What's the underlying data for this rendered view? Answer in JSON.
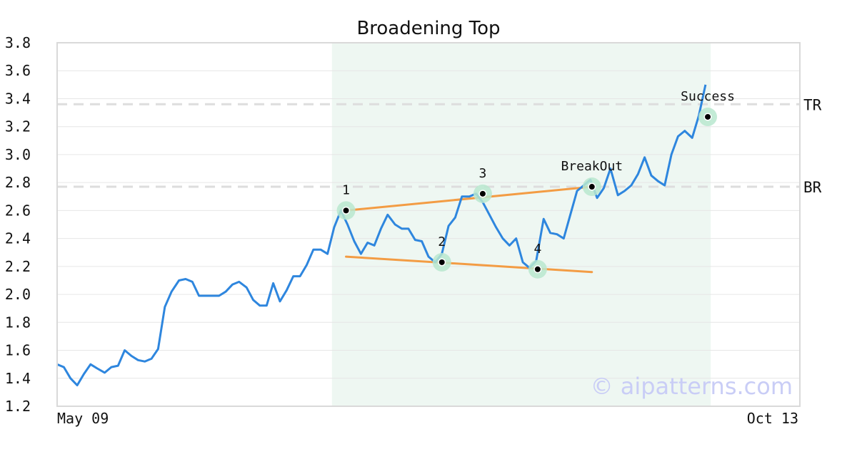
{
  "chart_data": {
    "type": "line",
    "title": "Broadening Top",
    "xlabel": "",
    "ylabel": "",
    "x_start_label": "May 09",
    "x_end_label": "Oct 13",
    "ylim": [
      1.2,
      3.8
    ],
    "xlim": [
      0,
      100
    ],
    "yticks": [
      "1.2",
      "1.4",
      "1.6",
      "1.8",
      "2.0",
      "2.2",
      "2.4",
      "2.6",
      "2.8",
      "3.0",
      "3.2",
      "3.4",
      "3.6",
      "3.8"
    ],
    "grid": true,
    "series": [
      {
        "color": "#2e86de",
        "values": [
          [
            0,
            1.5
          ],
          [
            0.9,
            1.48
          ],
          [
            1.8,
            1.4
          ],
          [
            2.7,
            1.35
          ],
          [
            3.6,
            1.43
          ],
          [
            4.5,
            1.5
          ],
          [
            5.4,
            1.47
          ],
          [
            6.4,
            1.44
          ],
          [
            7.3,
            1.48
          ],
          [
            8.2,
            1.49
          ],
          [
            9.1,
            1.6
          ],
          [
            10.0,
            1.56
          ],
          [
            10.9,
            1.53
          ],
          [
            11.8,
            1.52
          ],
          [
            12.7,
            1.54
          ],
          [
            13.6,
            1.61
          ],
          [
            14.5,
            1.91
          ],
          [
            15.4,
            2.02
          ],
          [
            16.4,
            2.1
          ],
          [
            17.3,
            2.11
          ],
          [
            18.2,
            2.09
          ],
          [
            19.1,
            1.99
          ],
          [
            20.0,
            1.99
          ],
          [
            20.9,
            1.99
          ],
          [
            21.8,
            1.99
          ],
          [
            22.7,
            2.02
          ],
          [
            23.6,
            2.07
          ],
          [
            24.5,
            2.09
          ],
          [
            25.5,
            2.05
          ],
          [
            26.4,
            1.96
          ],
          [
            27.3,
            1.92
          ],
          [
            28.2,
            1.92
          ],
          [
            29.1,
            2.08
          ],
          [
            30.0,
            1.95
          ],
          [
            30.9,
            2.03
          ],
          [
            31.8,
            2.13
          ],
          [
            32.7,
            2.13
          ],
          [
            33.6,
            2.21
          ],
          [
            34.5,
            2.32
          ],
          [
            35.5,
            2.32
          ],
          [
            36.4,
            2.29
          ],
          [
            37.3,
            2.48
          ],
          [
            38.2,
            2.6
          ],
          [
            39.1,
            2.5
          ],
          [
            40.0,
            2.38
          ],
          [
            40.9,
            2.29
          ],
          [
            41.8,
            2.37
          ],
          [
            42.7,
            2.35
          ],
          [
            43.6,
            2.47
          ],
          [
            44.5,
            2.57
          ],
          [
            45.5,
            2.5
          ],
          [
            46.4,
            2.47
          ],
          [
            47.3,
            2.47
          ],
          [
            48.2,
            2.39
          ],
          [
            49.1,
            2.38
          ],
          [
            50.0,
            2.27
          ],
          [
            50.9,
            2.23
          ],
          [
            51.8,
            2.29
          ],
          [
            52.7,
            2.49
          ],
          [
            53.6,
            2.55
          ],
          [
            54.5,
            2.7
          ],
          [
            55.5,
            2.7
          ],
          [
            56.4,
            2.72
          ],
          [
            57.3,
            2.66
          ],
          [
            58.2,
            2.57
          ],
          [
            59.1,
            2.48
          ],
          [
            60.0,
            2.4
          ],
          [
            60.9,
            2.35
          ],
          [
            61.8,
            2.4
          ],
          [
            62.7,
            2.23
          ],
          [
            63.6,
            2.19
          ],
          [
            64.5,
            2.24
          ],
          [
            65.5,
            2.54
          ],
          [
            66.4,
            2.44
          ],
          [
            67.3,
            2.43
          ],
          [
            68.2,
            2.4
          ],
          [
            69.1,
            2.57
          ],
          [
            70.0,
            2.74
          ],
          [
            70.9,
            2.78
          ],
          [
            71.8,
            2.82
          ],
          [
            72.7,
            2.69
          ],
          [
            73.6,
            2.76
          ],
          [
            74.5,
            2.9
          ],
          [
            75.5,
            2.71
          ],
          [
            76.4,
            2.74
          ],
          [
            77.3,
            2.78
          ],
          [
            78.2,
            2.86
          ],
          [
            79.1,
            2.98
          ],
          [
            80.0,
            2.85
          ],
          [
            80.9,
            2.81
          ],
          [
            81.8,
            2.78
          ],
          [
            82.7,
            3.0
          ],
          [
            83.6,
            3.13
          ],
          [
            84.5,
            3.17
          ],
          [
            85.5,
            3.12
          ],
          [
            86.4,
            3.28
          ],
          [
            87.3,
            3.5
          ]
        ]
      }
    ],
    "trendlines": [
      {
        "color": "#f39c44",
        "from": [
          38.9,
          2.6
        ],
        "to": [
          72.0,
          2.77
        ]
      },
      {
        "color": "#f39c44",
        "from": [
          38.9,
          2.27
        ],
        "to": [
          72.0,
          2.16
        ]
      }
    ],
    "reference_lines": [
      {
        "label": "TR",
        "y": 3.36,
        "color": "#dddddd"
      },
      {
        "label": "BR",
        "y": 2.77,
        "color": "#dddddd"
      }
    ],
    "pattern_region": {
      "x_from": 37.0,
      "x_to": 88.0,
      "color": "#eef7f2"
    },
    "annotations": [
      {
        "label": "1",
        "x": 38.9,
        "y": 2.6
      },
      {
        "label": "2",
        "x": 51.8,
        "y": 2.23
      },
      {
        "label": "3",
        "x": 57.3,
        "y": 2.72
      },
      {
        "label": "4",
        "x": 64.7,
        "y": 2.18
      },
      {
        "label": "BreakOut",
        "x": 72.0,
        "y": 2.77
      },
      {
        "label": "Success",
        "x": 87.6,
        "y": 3.27
      }
    ],
    "marker_halo_color": "#b9e8cf",
    "watermark": {
      "text": "© aipatterns.com",
      "color": "#c9cdf6"
    }
  }
}
